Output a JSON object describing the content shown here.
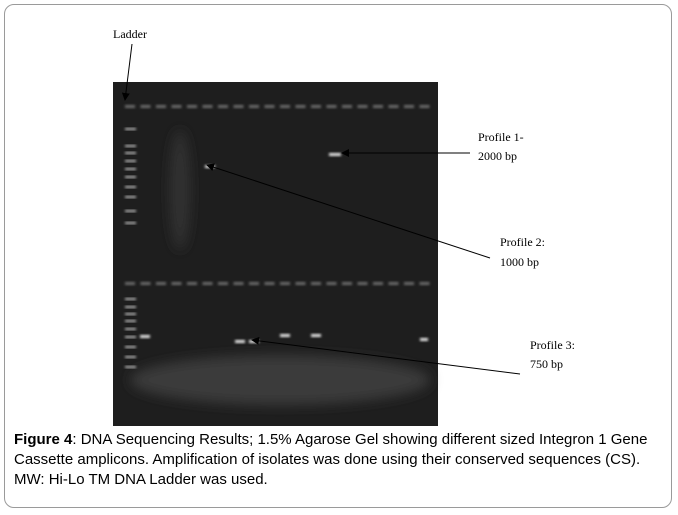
{
  "annotations": {
    "ladder": "Ladder",
    "profile1": {
      "title": "Profile 1-",
      "size": "2000 bp"
    },
    "profile2": {
      "title": "Profile 2:",
      "size": "1000 bp"
    },
    "profile3": {
      "title": "Profile 3:",
      "size": "750 bp"
    }
  },
  "caption": {
    "label": "Figure 4",
    "text": ": DNA Sequencing Results; 1.5% Agarose Gel showing different sized Integron 1 Gene Cassette amplicons. Amplification of isolates was done using their conserved sequences (CS). MW: Hi-Lo TM DNA Ladder was used."
  }
}
